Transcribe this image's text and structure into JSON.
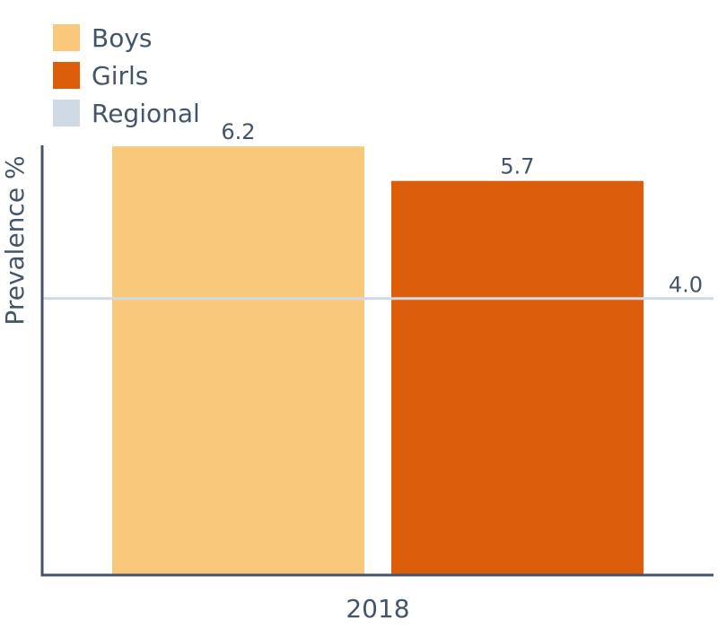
{
  "chart_data": {
    "type": "bar",
    "categories": [
      "2018"
    ],
    "series": [
      {
        "name": "Boys",
        "values": [
          6.2
        ],
        "color": "#fac87a"
      },
      {
        "name": "Girls",
        "values": [
          5.7
        ],
        "color": "#dd5e0a"
      }
    ],
    "reference_line": {
      "name": "Regional",
      "value": 4.0,
      "label": "4.0",
      "color": "#d0dae4"
    },
    "data_labels": [
      "6.2",
      "5.7"
    ],
    "xlabel": "",
    "ylabel": "Prevalence %",
    "ylim": [
      0,
      6.5
    ],
    "grid": false,
    "legend_position": "top-left",
    "axis_color": "#44546a"
  }
}
